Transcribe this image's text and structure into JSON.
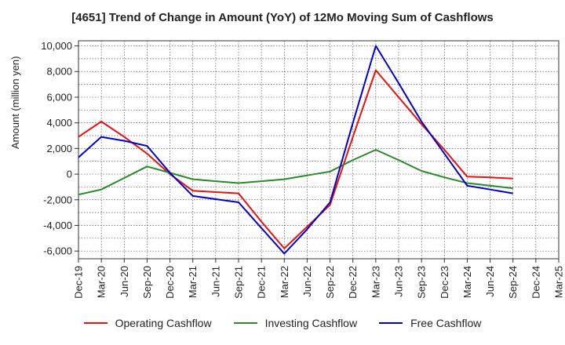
{
  "chart_data": {
    "type": "line",
    "title": "[4651]  Trend of Change in Amount (YoY) of 12Mo Moving Sum of Cashflows",
    "xlabel": "",
    "ylabel": "Amount (million yen)",
    "ylim": [
      -6600,
      10400
    ],
    "yticks": [
      10000,
      8000,
      6000,
      4000,
      2000,
      0,
      -2000,
      -4000,
      -6000
    ],
    "ytick_labels": [
      "10,000",
      "8,000",
      "6,000",
      "4,000",
      "2,000",
      "0",
      "-2,000",
      "-4,000",
      "-6,000"
    ],
    "categories": [
      "Dec-19",
      "Mar-20",
      "Jun-20",
      "Sep-20",
      "Dec-20",
      "Mar-21",
      "Jun-21",
      "Sep-21",
      "Dec-21",
      "Mar-22",
      "Jun-22",
      "Sep-22",
      "Dec-22",
      "Mar-23",
      "Jun-23",
      "Sep-23",
      "Dec-23",
      "Mar-24",
      "Jun-24",
      "Sep-24",
      "Dec-24",
      "Mar-25"
    ],
    "grid": true,
    "legend_position": "bottom",
    "series": [
      {
        "name": "Operating Cashflow",
        "color": "#e8120c",
        "values": [
          2900,
          4100,
          2900,
          1600,
          0,
          -1300,
          -1400,
          -1500,
          -3700,
          -5800,
          -4100,
          -2400,
          2900,
          8100,
          6000,
          3900,
          1900,
          -200,
          -250,
          -350,
          null,
          null
        ]
      },
      {
        "name": "Investing Cashflow",
        "color": "#2a8a2a",
        "values": [
          -1600,
          -1200,
          -300,
          600,
          100,
          -400,
          -550,
          -700,
          -550,
          -400,
          -100,
          200,
          1100,
          1900,
          1100,
          250,
          -250,
          -700,
          -900,
          -1100,
          null,
          null
        ]
      },
      {
        "name": "Free Cashflow",
        "color": "#0000d0",
        "values": [
          1300,
          2900,
          2600,
          2200,
          100,
          -1700,
          -1950,
          -2200,
          -4200,
          -6200,
          -4300,
          -2200,
          4000,
          10000,
          7100,
          4100,
          1600,
          -900,
          -1200,
          -1500,
          null,
          null
        ]
      }
    ]
  }
}
